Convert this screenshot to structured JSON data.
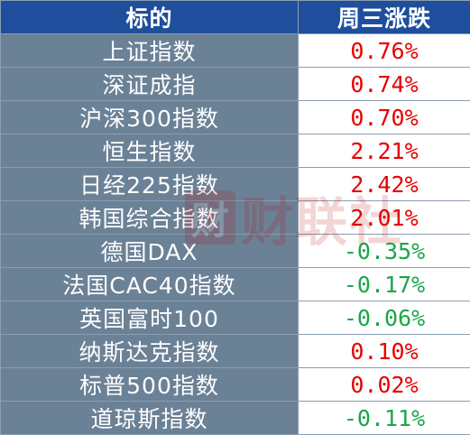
{
  "table": {
    "headers": [
      "标的",
      "周三涨跌"
    ],
    "rows": [
      {
        "name": "上证指数",
        "change": "0.76%",
        "direction": "up"
      },
      {
        "name": "深证成指",
        "change": "0.74%",
        "direction": "up"
      },
      {
        "name": "沪深300指数",
        "change": "0.70%",
        "direction": "up"
      },
      {
        "name": "恒生指数",
        "change": "2.21%",
        "direction": "up"
      },
      {
        "name": "日经225指数",
        "change": "2.42%",
        "direction": "up"
      },
      {
        "name": "韩国综合指数",
        "change": "2.01%",
        "direction": "up"
      },
      {
        "name": "德国DAX",
        "change": "-0.35%",
        "direction": "down"
      },
      {
        "name": "法国CAC40指数",
        "change": "-0.17%",
        "direction": "down"
      },
      {
        "name": "英国富时100",
        "change": "-0.06%",
        "direction": "down"
      },
      {
        "name": "纳斯达克指数",
        "change": "0.10%",
        "direction": "up"
      },
      {
        "name": "标普500指数",
        "change": "0.02%",
        "direction": "up"
      },
      {
        "name": "道琼斯指数",
        "change": "-0.11%",
        "direction": "down"
      }
    ]
  },
  "colors": {
    "header_bg": "#1f4e9c",
    "name_bg": "#6b8196",
    "up": "#e60000",
    "down": "#1aa64a"
  },
  "watermark": {
    "logo_char": "财",
    "text": "财联社"
  }
}
